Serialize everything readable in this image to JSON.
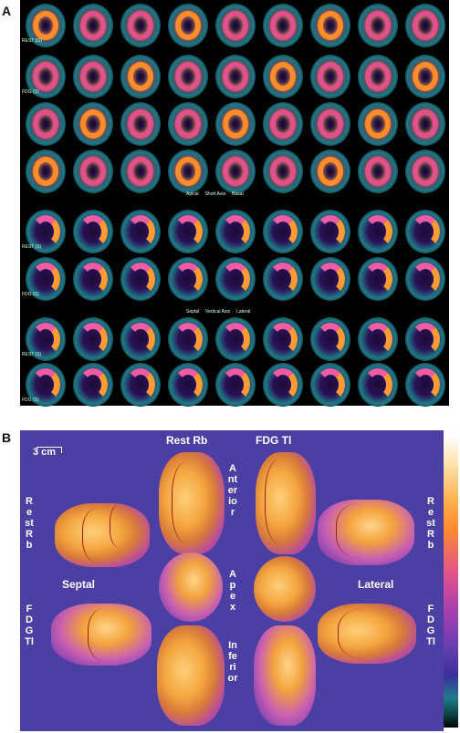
{
  "panels": {
    "a_letter": "A",
    "b_letter": "B"
  },
  "panel_a": {
    "row_labels": [
      "REST (G)",
      "FDG (S)",
      "",
      "",
      "REST (S)",
      "FDG (S)",
      "REST (S)",
      "FDG (S)"
    ],
    "short_axis_caption": [
      "Apical",
      "Short Axis",
      "Basal"
    ],
    "vertical_axis_caption": [
      "Septal",
      "Vertical Axis",
      "Lateral"
    ]
  },
  "panel_b": {
    "scale_label": "3 cm",
    "col_titles": {
      "rest": "Rest Rb",
      "fdg": "FDG Tl"
    },
    "center_labels": {
      "anterior": "Anterior",
      "apex": "Apex",
      "inferior": "Inferior"
    },
    "side_labels": {
      "left_rest": "Rest Rb",
      "right_rest": "Rest Rb",
      "left_fdg": "FDG Tl",
      "right_fdg": "FDG Tl",
      "septal": "Septal",
      "lateral": "Lateral"
    }
  },
  "colors": {
    "panel_b_background": "#4b3fa3",
    "hot": "#ff8c2a",
    "mid": "#e0508f",
    "vessel": "#9b1d1d"
  }
}
